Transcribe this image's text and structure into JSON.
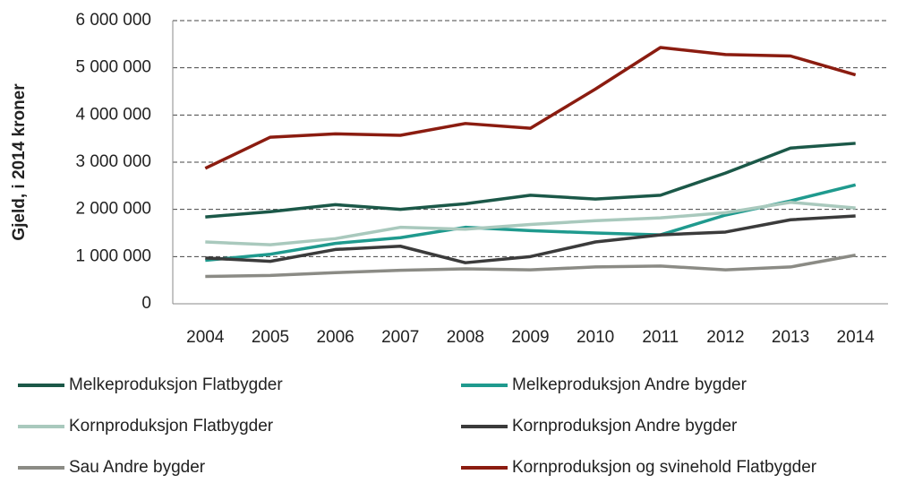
{
  "chart_data": {
    "type": "line",
    "y_label": "Gjeld, i 2014 kroner",
    "categories": [
      "2004",
      "2005",
      "2006",
      "2007",
      "2008",
      "2009",
      "2010",
      "2011",
      "2012",
      "2013",
      "2014"
    ],
    "ylim": [
      0,
      6000000
    ],
    "yticks": [
      0,
      {
        "value": 1000000,
        "label": "1 000 000"
      },
      {
        "value": 2000000,
        "label": "2 000 000"
      },
      {
        "value": 3000000,
        "label": "3 000 000"
      },
      {
        "value": 4000000,
        "label": "4 000 000"
      },
      {
        "value": 5000000,
        "label": "5 000 000"
      },
      {
        "value": 6000000,
        "label": "6 000 000"
      }
    ],
    "grid": true,
    "series": [
      {
        "name": "Melkeproduksjon Flatbygder",
        "color": "#1b5848",
        "values": [
          1840000,
          1950000,
          2100000,
          2000000,
          2120000,
          2300000,
          2220000,
          2300000,
          2770000,
          3300000,
          3400000
        ]
      },
      {
        "name": "Melkeproduksjon Andre bygder",
        "color": "#1f9a8e",
        "values": [
          920000,
          1050000,
          1280000,
          1400000,
          1620000,
          1550000,
          1500000,
          1460000,
          1880000,
          2180000,
          2520000
        ]
      },
      {
        "name": "Kornproduksjon Flatbygder",
        "color": "#a9c9bd",
        "values": [
          1310000,
          1250000,
          1380000,
          1620000,
          1580000,
          1680000,
          1760000,
          1820000,
          1930000,
          2150000,
          2030000
        ]
      },
      {
        "name": "Kornproduksjon Andre bygder",
        "color": "#3b3b3b",
        "values": [
          970000,
          900000,
          1150000,
          1220000,
          870000,
          1000000,
          1310000,
          1460000,
          1520000,
          1780000,
          1860000
        ]
      },
      {
        "name": "Sau Andre bygder",
        "color": "#8b8b85",
        "values": [
          580000,
          600000,
          660000,
          710000,
          740000,
          720000,
          780000,
          800000,
          720000,
          780000,
          1030000
        ]
      },
      {
        "name": "Kornproduksjon og svinehold Flatbygder",
        "color": "#8b1c10",
        "values": [
          2870000,
          3530000,
          3600000,
          3570000,
          3820000,
          3720000,
          4550000,
          5430000,
          5280000,
          5250000,
          4850000
        ]
      }
    ]
  }
}
